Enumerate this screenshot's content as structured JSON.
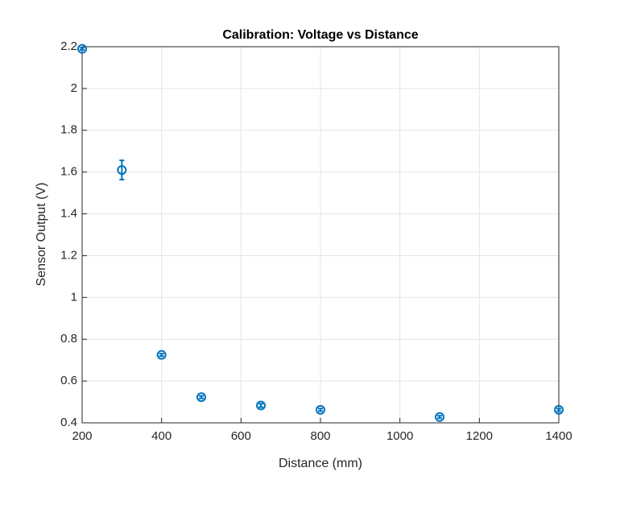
{
  "chart_data": {
    "type": "errorbar-scatter",
    "title": "Calibration: Voltage vs Distance",
    "x_label": "Distance (mm)",
    "y_label": "Sensor Output (V)",
    "x": [
      200,
      300,
      400,
      500,
      650,
      800,
      1100,
      1400
    ],
    "values": [
      2.19,
      1.61,
      0.725,
      0.523,
      0.483,
      0.462,
      0.428,
      0.462
    ],
    "errors": [
      0.005,
      0.046,
      0.006,
      0.006,
      0.008,
      0.006,
      0.006,
      0.006
    ],
    "color": "#0072bd",
    "xlim": [
      200,
      1400
    ],
    "xticks": [
      200,
      400,
      600,
      800,
      1000,
      1200,
      1400
    ],
    "ylim": [
      0.4,
      2.2
    ],
    "yticks": [
      0.4,
      0.6,
      0.8,
      1,
      1.2,
      1.4,
      1.6,
      1.8,
      2,
      2.2
    ],
    "grid": true
  }
}
